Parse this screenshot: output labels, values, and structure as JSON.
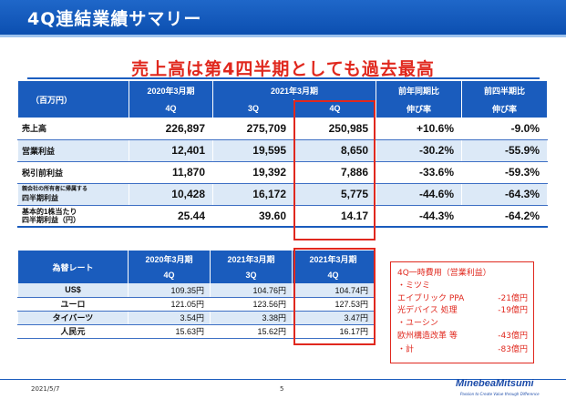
{
  "header": {
    "title": "4Q連結業績サマリー"
  },
  "headline": "売上高は第4四半期としても過去最高",
  "results": {
    "unit_label": "（百万円）",
    "fy2020_label": "2020年3月期",
    "fy2021_label": "2021年3月期",
    "yoy_label": "前年同期比",
    "qoq_label": "前四半期比",
    "q4_label": "4Q",
    "q3_label": "3Q",
    "q4b_label": "4Q",
    "growth_label_1": "伸び率",
    "growth_label_2": "伸び率",
    "rows": [
      {
        "label": "売上高",
        "prev4q": "226,897",
        "q3": "275,709",
        "q4": "250,985",
        "yoy": "+10.6%",
        "qoq": "-9.0%"
      },
      {
        "label": "営業利益",
        "prev4q": "12,401",
        "q3": "19,595",
        "q4": "8,650",
        "yoy": "-30.2%",
        "qoq": "-55.9%"
      },
      {
        "label": "税引前利益",
        "prev4q": "11,870",
        "q3": "19,392",
        "q4": "7,886",
        "yoy": "-33.6%",
        "qoq": "-59.3%"
      },
      {
        "label_1": "親会社の所有者に帰属する",
        "label_2": "四半期利益",
        "prev4q": "10,428",
        "q3": "16,172",
        "q4": "5,775",
        "yoy": "-44.6%",
        "qoq": "-64.3%"
      },
      {
        "label_1": "基本的1株当たり",
        "label_2": "四半期利益（円）",
        "prev4q": "25.44",
        "q3": "39.60",
        "q4": "14.17",
        "yoy": "-44.3%",
        "qoq": "-64.2%"
      }
    ]
  },
  "fx": {
    "header_label": "為替レート",
    "col1_year": "2020年3月期",
    "col1_q": "4Q",
    "col2_year": "2021年3月期",
    "col2_q": "3Q",
    "col3_year": "2021年3月期",
    "col3_q": "4Q",
    "rows": [
      {
        "label": "US$",
        "c1": "109.35円",
        "c2": "104.76円",
        "c3": "104.74円"
      },
      {
        "label": "ユーロ",
        "c1": "121.05円",
        "c2": "123.56円",
        "c3": "127.53円"
      },
      {
        "label": "タイバーツ",
        "c1": "3.54円",
        "c2": "3.38円",
        "c3": "3.47円"
      },
      {
        "label": "人民元",
        "c1": "15.63円",
        "c2": "15.62円",
        "c3": "16.17円"
      }
    ]
  },
  "one_time_costs": {
    "title": "4Q一時費用（営業利益）",
    "minebea": "・ミツミ",
    "item1_label": "エイブリック PPA",
    "item1_amount": "-21億円",
    "item2_label": "光デバイス 処理",
    "item2_amount": "-19億円",
    "ushin": "・ユーシン",
    "item3_label": "欧州構造改革 等",
    "item3_amount": "-43億円",
    "total_label": "・計",
    "total_amount": "-83億円"
  },
  "footer": {
    "date": "2021/5/7",
    "page": "5",
    "logo": "MinebeaMitsumi",
    "tagline": "Passion to Create Value through Difference"
  },
  "colors": {
    "brand_blue": "#1a5cbd",
    "accent_red": "#e0281e",
    "row_alt": "#dce9f7"
  }
}
